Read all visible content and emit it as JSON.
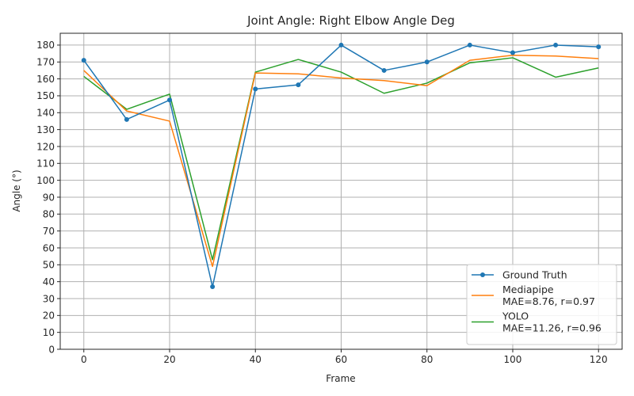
{
  "chart_data": {
    "type": "line",
    "title": "Joint Angle: Right Elbow Angle Deg",
    "xlabel": "Frame",
    "ylabel": "Angle (°)",
    "xlim": [
      -5.5,
      125.5
    ],
    "ylim": [
      0,
      187
    ],
    "xticks": [
      0,
      20,
      40,
      60,
      80,
      100,
      120
    ],
    "yticks": [
      0,
      10,
      20,
      30,
      40,
      50,
      60,
      70,
      80,
      90,
      100,
      110,
      120,
      130,
      140,
      150,
      160,
      170,
      180
    ],
    "grid": true,
    "legend_position": "lower-right",
    "x": [
      0,
      10,
      20,
      30,
      40,
      50,
      60,
      70,
      80,
      90,
      100,
      110,
      120
    ],
    "series": [
      {
        "name": "Ground Truth",
        "legend_lines": [
          "Ground Truth"
        ],
        "color": "#1f77b4",
        "marker": "circle",
        "values": [
          171,
          136,
          147.5,
          37,
          154,
          156.5,
          180,
          165,
          170,
          180,
          175.5,
          180,
          179
        ]
      },
      {
        "name": "Mediapipe MAE=8.76, r=0.97",
        "legend_lines": [
          "Mediapipe",
          "MAE=8.76, r=0.97"
        ],
        "color": "#ff7f0e",
        "marker": "none",
        "values": [
          165,
          141,
          135,
          49,
          163.5,
          163,
          160.5,
          159,
          156,
          171,
          174,
          173.5,
          172
        ]
      },
      {
        "name": "YOLO MAE=11.26, r=0.96",
        "legend_lines": [
          "YOLO",
          "MAE=11.26, r=0.96"
        ],
        "color": "#2ca02c",
        "marker": "none",
        "values": [
          161.5,
          142,
          151,
          53,
          164,
          171.5,
          164,
          151.5,
          157.5,
          169.5,
          172.5,
          161,
          166.5
        ]
      }
    ]
  }
}
